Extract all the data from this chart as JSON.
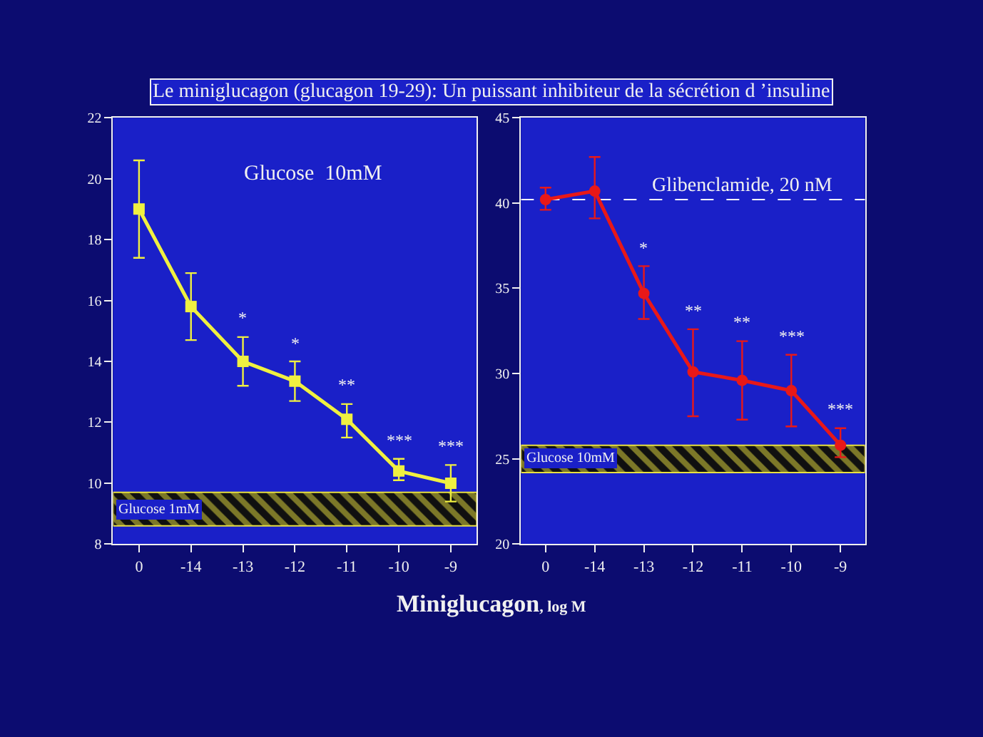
{
  "chart_data": [
    {
      "type": "line",
      "title": "Le miniglucagon (glucagon 19-29): Un puissant inhibiteur de la sécrétion d ’insuline",
      "xlabel": "Miniglucagon, log M",
      "categories": [
        "0",
        "-14",
        "-13",
        "-12",
        "-11",
        "-10",
        "-9"
      ],
      "series": [
        {
          "color": "#f0f040",
          "values": [
            19.0,
            15.8,
            14.0,
            13.35,
            12.1,
            10.4,
            10.0
          ],
          "errors": [
            [
              17.4,
              20.6
            ],
            [
              14.7,
              16.9
            ],
            [
              13.2,
              14.8
            ],
            [
              12.7,
              14.0
            ],
            [
              11.5,
              12.6
            ],
            [
              10.1,
              10.8
            ],
            [
              9.4,
              10.6
            ]
          ],
          "value_labels": [
            null,
            null,
            "*",
            "*",
            "**",
            "***",
            "***"
          ]
        }
      ],
      "marker": "square",
      "line_style": "solid",
      "grid": false,
      "ylim": [
        8,
        22
      ],
      "yticks": [
        8,
        10,
        12,
        14,
        16,
        18,
        20,
        22
      ],
      "bands": [
        {
          "axis": "y",
          "from": 8.6,
          "to": 9.7,
          "label": "Glucose 1mM",
          "color": "#e8e040"
        }
      ],
      "annotations": [
        "Glucose  10mM"
      ]
    },
    {
      "type": "line",
      "categories": [
        "0",
        "-14",
        "-13",
        "-12",
        "-11",
        "-10",
        "-9"
      ],
      "series": [
        {
          "color": "#e81818",
          "values": [
            40.2,
            40.7,
            34.7,
            30.1,
            29.6,
            29.0,
            25.8
          ],
          "errors": [
            [
              39.6,
              40.9
            ],
            [
              39.1,
              42.7
            ],
            [
              33.2,
              36.3
            ],
            [
              27.5,
              32.6
            ],
            [
              27.3,
              31.9
            ],
            [
              26.9,
              31.1
            ],
            [
              25.1,
              26.8
            ]
          ],
          "value_labels": [
            null,
            null,
            "*",
            "**",
            "**",
            "***",
            "***"
          ]
        }
      ],
      "marker": "circle",
      "line_style": "solid",
      "grid": false,
      "ylim": [
        20,
        45
      ],
      "yticks": [
        20,
        25,
        30,
        35,
        40,
        45
      ],
      "ref_lines": [
        {
          "axis": "y",
          "value": 40.2,
          "label": "Glibenclamide, 20 nM",
          "color": "#ffffff",
          "line_style": "dashed"
        }
      ],
      "bands": [
        {
          "axis": "y",
          "from": 24.2,
          "to": 25.8,
          "label": "Glucose 10mM",
          "color": "#e8e040"
        }
      ]
    }
  ]
}
